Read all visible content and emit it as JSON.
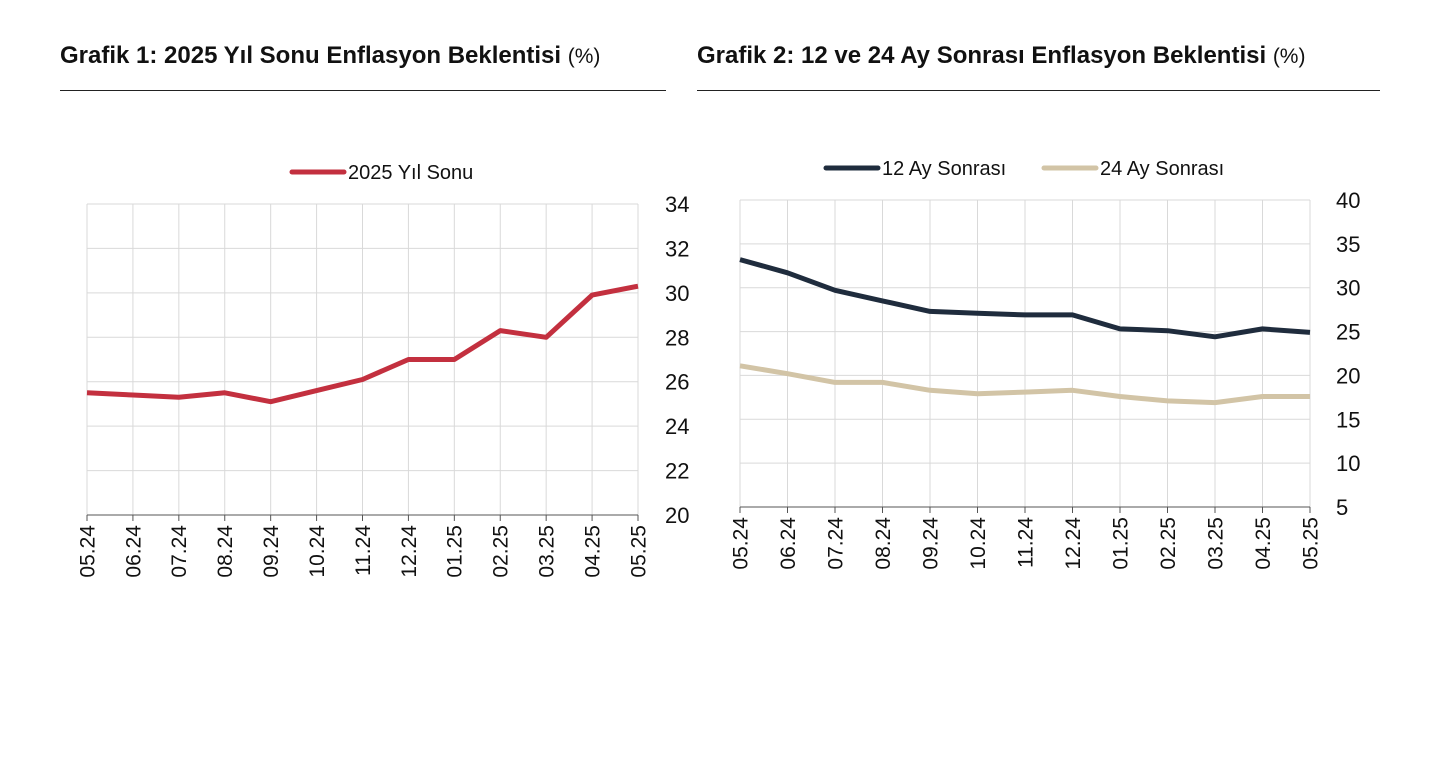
{
  "chart_data": [
    {
      "type": "line",
      "title": "Grafik 1: 2025 Yıl Sonu Enflasyon Beklentisi",
      "unit": "(%)",
      "categories": [
        "05.24",
        "06.24",
        "07.24",
        "08.24",
        "09.24",
        "10.24",
        "11.24",
        "12.24",
        "01.25",
        "02.25",
        "03.25",
        "04.25",
        "05.25"
      ],
      "series": [
        {
          "name": "2025 Yıl Sonu",
          "color": "#c3303f",
          "values": [
            25.5,
            25.4,
            25.3,
            25.5,
            25.1,
            25.6,
            26.1,
            27.0,
            27.0,
            28.3,
            28.0,
            29.9,
            30.3
          ]
        }
      ],
      "ylim": [
        20,
        34
      ],
      "yticks": [
        20,
        22,
        24,
        26,
        28,
        30,
        32,
        34
      ],
      "y_axis_side": "right",
      "grid": true,
      "legend_position": "top-center"
    },
    {
      "type": "line",
      "title": "Grafik 2: 12 ve 24 Ay Sonrası Enflasyon Beklentisi",
      "unit": "(%)",
      "categories": [
        "05.24",
        "06.24",
        "07.24",
        "08.24",
        "09.24",
        "10.24",
        "11.24",
        "12.24",
        "01.25",
        "02.25",
        "03.25",
        "04.25",
        "05.25"
      ],
      "series": [
        {
          "name": "12 Ay Sonrası",
          "color": "#1f2c3d",
          "values": [
            33.2,
            31.7,
            29.7,
            28.5,
            27.3,
            27.1,
            26.9,
            26.9,
            25.3,
            25.1,
            24.4,
            25.3,
            24.9
          ]
        },
        {
          "name": "24 Ay Sonrası",
          "color": "#d2c4a6",
          "values": [
            21.1,
            20.2,
            19.2,
            19.2,
            18.3,
            17.9,
            18.1,
            18.3,
            17.6,
            17.1,
            16.9,
            17.6,
            17.6
          ]
        }
      ],
      "ylim": [
        5,
        40
      ],
      "yticks": [
        5,
        10,
        15,
        20,
        25,
        30,
        35,
        40
      ],
      "y_axis_side": "right",
      "grid": true,
      "legend_position": "top-center"
    }
  ]
}
